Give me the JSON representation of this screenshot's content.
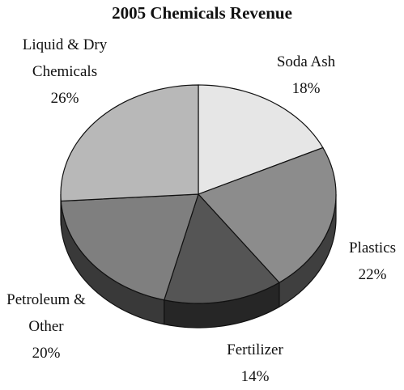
{
  "chart_data": {
    "type": "pie",
    "title": "2005 Chemicals Revenue",
    "categories": [
      "Soda Ash",
      "Plastics",
      "Fertilizer",
      "Petroleum & Other",
      "Liquid & Dry Chemicals"
    ],
    "values": [
      18,
      22,
      14,
      20,
      26
    ],
    "value_labels": [
      "18%",
      "22%",
      "14%",
      "20%",
      "26%"
    ],
    "colors": [
      "#e6e6e6",
      "#8c8c8c",
      "#555555",
      "#7f7f7f",
      "#b8b8b8"
    ]
  }
}
